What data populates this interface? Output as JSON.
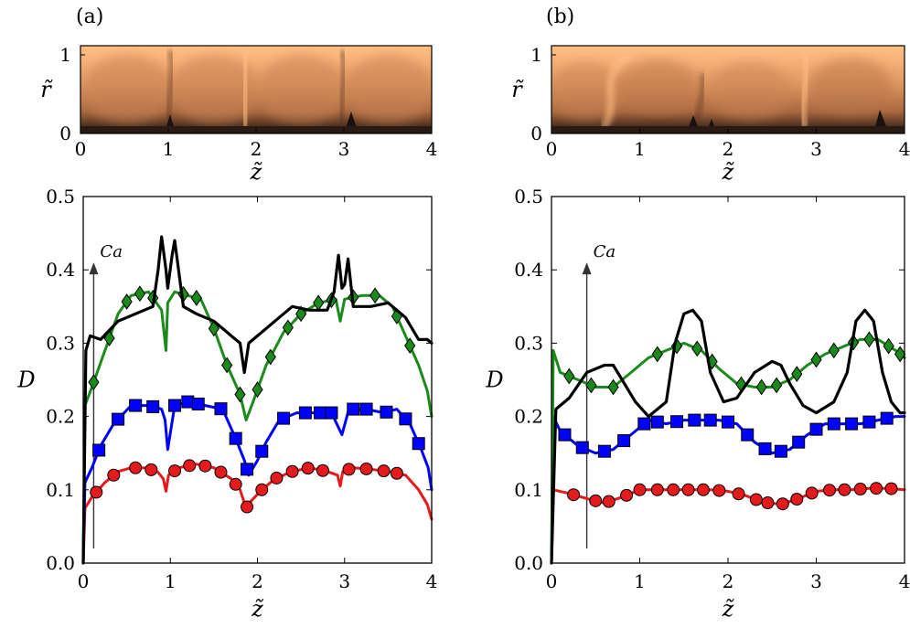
{
  "panels": [
    {
      "label": "(a)"
    },
    {
      "label": "(b)"
    }
  ],
  "heatmaps": [
    {
      "xlabel": "z̃",
      "ylabel": "r̃",
      "xticks": [
        "0",
        "1",
        "2",
        "3",
        "4"
      ],
      "yticks": [
        "0",
        "1"
      ],
      "colormap": [
        "#1a1010",
        "#3b2418",
        "#a8683f",
        "#dd9560",
        "#f6ae76",
        "#ffc184"
      ]
    },
    {
      "xlabel": "z̃",
      "ylabel": "r̃",
      "xticks": [
        "0",
        "1",
        "2",
        "3",
        "4"
      ],
      "yticks": [
        "0",
        "1"
      ],
      "colormap": [
        "#1a1010",
        "#3b2418",
        "#a8683f",
        "#dd9560",
        "#f6ae76",
        "#ffc184"
      ]
    }
  ],
  "chart_data": [
    {
      "type": "line",
      "panel": "(a)",
      "xlabel": "z̃",
      "ylabel": "D",
      "xlim": [
        0,
        4
      ],
      "ylim": [
        0,
        0.5
      ],
      "xticks": [
        "0",
        "1",
        "2",
        "3",
        "4"
      ],
      "yticks": [
        "0.0",
        "0.1",
        "0.2",
        "0.3",
        "0.4",
        "0.5"
      ],
      "grid": false,
      "annotation": {
        "text": "Ca",
        "x": 0.12,
        "y_from": 0.02,
        "y_to": 0.41
      },
      "series": [
        {
          "color": "#e41a1c",
          "marker": "circle",
          "x": [
            0,
            0.02,
            0.1,
            0.25,
            0.4,
            0.55,
            0.7,
            0.85,
            0.92,
            0.95,
            0.98,
            1.1,
            1.3,
            1.5,
            1.7,
            1.8,
            1.87,
            1.93,
            2.05,
            2.2,
            2.4,
            2.6,
            2.8,
            2.92,
            2.95,
            2.98,
            3.1,
            3.3,
            3.5,
            3.7,
            3.85,
            3.95,
            4.0
          ],
          "values": [
            0.0,
            0.075,
            0.09,
            0.11,
            0.125,
            0.13,
            0.13,
            0.125,
            0.115,
            0.098,
            0.12,
            0.13,
            0.135,
            0.13,
            0.115,
            0.1,
            0.075,
            0.085,
            0.1,
            0.115,
            0.125,
            0.13,
            0.125,
            0.12,
            0.105,
            0.125,
            0.13,
            0.128,
            0.125,
            0.12,
            0.1,
            0.08,
            0.06
          ],
          "marker_x": [
            0.15,
            0.35,
            0.6,
            0.78,
            1.05,
            1.22,
            1.4,
            1.58,
            1.75,
            1.88,
            2.05,
            2.22,
            2.4,
            2.58,
            2.75,
            3.05,
            3.25,
            3.45,
            3.6
          ]
        },
        {
          "color": "#0000ff",
          "marker": "square",
          "x": [
            0,
            0.02,
            0.1,
            0.2,
            0.35,
            0.55,
            0.75,
            0.9,
            0.94,
            0.97,
            1.05,
            1.2,
            1.4,
            1.6,
            1.75,
            1.85,
            1.9,
            2.0,
            2.1,
            2.25,
            2.45,
            2.65,
            2.85,
            2.93,
            2.97,
            3.05,
            3.25,
            3.45,
            3.6,
            3.75,
            3.88,
            3.96,
            4.0
          ],
          "values": [
            0.0,
            0.11,
            0.13,
            0.16,
            0.19,
            0.215,
            0.215,
            0.21,
            0.195,
            0.155,
            0.215,
            0.22,
            0.215,
            0.21,
            0.17,
            0.14,
            0.12,
            0.14,
            0.165,
            0.195,
            0.205,
            0.205,
            0.205,
            0.185,
            0.175,
            0.21,
            0.21,
            0.205,
            0.21,
            0.19,
            0.155,
            0.13,
            0.1
          ],
          "marker_x": [
            0.18,
            0.4,
            0.6,
            0.8,
            1.05,
            1.2,
            1.32,
            1.58,
            1.75,
            1.88,
            2.05,
            2.3,
            2.55,
            2.72,
            2.85,
            3.1,
            3.25,
            3.48,
            3.7,
            3.85
          ]
        },
        {
          "color": "#1a8a1a",
          "marker": "diamond",
          "x": [
            0,
            0.02,
            0.1,
            0.25,
            0.4,
            0.55,
            0.75,
            0.9,
            0.95,
            0.97,
            1.05,
            1.2,
            1.35,
            1.5,
            1.65,
            1.8,
            1.87,
            1.95,
            2.1,
            2.3,
            2.5,
            2.7,
            2.9,
            2.95,
            3.0,
            3.2,
            3.4,
            3.55,
            3.7,
            3.85,
            3.95,
            4.0
          ],
          "values": [
            0.0,
            0.215,
            0.24,
            0.29,
            0.34,
            0.365,
            0.37,
            0.345,
            0.29,
            0.355,
            0.37,
            0.365,
            0.36,
            0.32,
            0.27,
            0.23,
            0.195,
            0.22,
            0.27,
            0.315,
            0.34,
            0.355,
            0.36,
            0.33,
            0.36,
            0.365,
            0.365,
            0.35,
            0.31,
            0.27,
            0.235,
            0.2
          ],
          "marker_x": [
            0.12,
            0.3,
            0.5,
            0.65,
            0.8,
            1.15,
            1.3,
            1.5,
            1.65,
            1.8,
            2.0,
            2.15,
            2.35,
            2.5,
            2.7,
            2.85,
            3.1,
            3.35,
            3.6,
            3.75
          ]
        },
        {
          "color": "#000000",
          "marker": "none",
          "x": [
            0,
            0.03,
            0.08,
            0.2,
            0.4,
            0.6,
            0.8,
            0.86,
            0.9,
            0.95,
            0.97,
            1.02,
            1.05,
            1.15,
            1.3,
            1.5,
            1.7,
            1.8,
            1.85,
            1.9,
            2.0,
            2.2,
            2.4,
            2.6,
            2.8,
            2.88,
            2.93,
            2.97,
            3.0,
            3.04,
            3.1,
            3.3,
            3.5,
            3.7,
            3.85,
            3.95,
            4.0
          ],
          "values": [
            0.0,
            0.29,
            0.31,
            0.305,
            0.33,
            0.34,
            0.35,
            0.4,
            0.445,
            0.4,
            0.375,
            0.42,
            0.44,
            0.35,
            0.34,
            0.33,
            0.31,
            0.3,
            0.26,
            0.3,
            0.31,
            0.33,
            0.35,
            0.345,
            0.345,
            0.37,
            0.42,
            0.375,
            0.38,
            0.415,
            0.35,
            0.35,
            0.355,
            0.335,
            0.305,
            0.305,
            0.3
          ],
          "marker_x": []
        }
      ]
    },
    {
      "type": "line",
      "panel": "(b)",
      "xlabel": "z̃",
      "ylabel": "D",
      "xlim": [
        0,
        4
      ],
      "ylim": [
        0,
        0.5
      ],
      "xticks": [
        "0",
        "1",
        "2",
        "3",
        "4"
      ],
      "yticks": [
        "0.0",
        "0.1",
        "0.2",
        "0.3",
        "0.4",
        "0.5"
      ],
      "grid": false,
      "annotation": {
        "text": "Ca",
        "x": 0.4,
        "y_from": 0.02,
        "y_to": 0.41
      },
      "series": [
        {
          "color": "#e41a1c",
          "marker": "circle",
          "x": [
            0,
            0.02,
            0.2,
            0.4,
            0.6,
            0.8,
            1.0,
            1.2,
            1.4,
            1.6,
            1.8,
            2.0,
            2.2,
            2.4,
            2.6,
            2.8,
            3.0,
            3.2,
            3.4,
            3.6,
            3.8,
            4.0
          ],
          "values": [
            0.0,
            0.1,
            0.095,
            0.088,
            0.082,
            0.09,
            0.1,
            0.1,
            0.1,
            0.1,
            0.1,
            0.098,
            0.092,
            0.083,
            0.08,
            0.088,
            0.098,
            0.1,
            0.1,
            0.102,
            0.102,
            0.1
          ],
          "marker_x": [
            0.25,
            0.5,
            0.65,
            0.85,
            1.0,
            1.2,
            1.38,
            1.55,
            1.72,
            1.9,
            2.12,
            2.32,
            2.45,
            2.62,
            2.78,
            2.95,
            3.15,
            3.32,
            3.5,
            3.68,
            3.85
          ]
        },
        {
          "color": "#0000ff",
          "marker": "square",
          "x": [
            0,
            0.02,
            0.1,
            0.3,
            0.5,
            0.7,
            0.9,
            1.1,
            1.3,
            1.5,
            1.7,
            1.9,
            2.1,
            2.3,
            2.5,
            2.7,
            2.9,
            3.1,
            3.3,
            3.5,
            3.7,
            3.9,
            4.0
          ],
          "values": [
            0.0,
            0.2,
            0.18,
            0.16,
            0.15,
            0.155,
            0.175,
            0.195,
            0.19,
            0.195,
            0.195,
            0.195,
            0.19,
            0.165,
            0.15,
            0.155,
            0.175,
            0.19,
            0.19,
            0.19,
            0.195,
            0.2,
            0.2
          ],
          "marker_x": [
            0.15,
            0.35,
            0.6,
            0.82,
            1.05,
            1.2,
            1.42,
            1.62,
            1.8,
            2.0,
            2.22,
            2.42,
            2.6,
            2.8,
            3.0,
            3.2,
            3.4,
            3.6,
            3.8
          ]
        },
        {
          "color": "#1a8a1a",
          "marker": "diamond",
          "x": [
            0,
            0.02,
            0.1,
            0.3,
            0.5,
            0.7,
            0.9,
            1.1,
            1.3,
            1.5,
            1.7,
            1.9,
            2.1,
            2.3,
            2.5,
            2.7,
            2.9,
            3.1,
            3.3,
            3.5,
            3.7,
            3.9,
            4.0
          ],
          "values": [
            0.0,
            0.29,
            0.26,
            0.25,
            0.24,
            0.24,
            0.26,
            0.28,
            0.29,
            0.3,
            0.29,
            0.265,
            0.245,
            0.24,
            0.24,
            0.25,
            0.27,
            0.285,
            0.295,
            0.305,
            0.305,
            0.29,
            0.28
          ],
          "marker_x": [
            0.2,
            0.45,
            0.7,
            1.2,
            1.42,
            1.65,
            1.82,
            2.15,
            2.38,
            2.55,
            2.78,
            3.0,
            3.2,
            3.42,
            3.6,
            3.82,
            3.95
          ]
        },
        {
          "color": "#000000",
          "marker": "none",
          "x": [
            0,
            0.05,
            0.2,
            0.4,
            0.6,
            0.7,
            0.8,
            0.95,
            1.1,
            1.3,
            1.4,
            1.5,
            1.6,
            1.7,
            1.8,
            1.95,
            2.1,
            2.3,
            2.5,
            2.6,
            2.7,
            2.85,
            3.0,
            3.2,
            3.35,
            3.45,
            3.55,
            3.65,
            3.75,
            3.85,
            3.95,
            4.0
          ],
          "values": [
            0.0,
            0.21,
            0.225,
            0.26,
            0.27,
            0.27,
            0.25,
            0.22,
            0.2,
            0.22,
            0.3,
            0.34,
            0.345,
            0.33,
            0.26,
            0.22,
            0.225,
            0.26,
            0.275,
            0.27,
            0.245,
            0.215,
            0.205,
            0.22,
            0.26,
            0.33,
            0.345,
            0.33,
            0.26,
            0.22,
            0.205,
            0.205
          ],
          "marker_x": []
        }
      ]
    }
  ]
}
